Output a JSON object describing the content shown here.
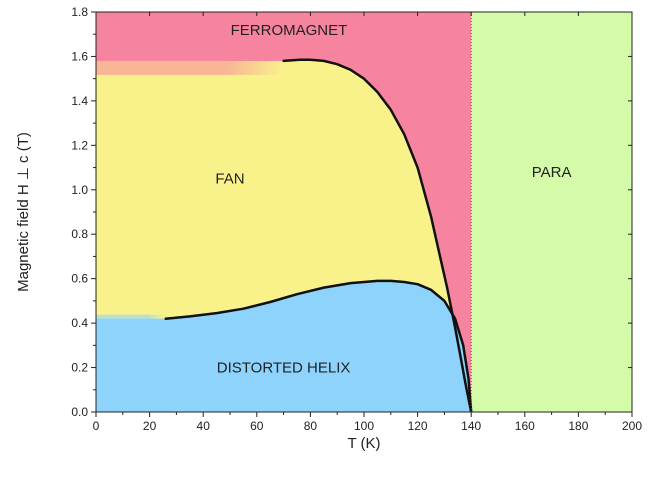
{
  "chart_data": {
    "type": "area",
    "title": "",
    "xlabel": "T (K)",
    "ylabel": "Magnetic field H ⊥ c (T)",
    "xlim": [
      0,
      200
    ],
    "ylim": [
      0,
      1.8
    ],
    "xticks": [
      "0",
      "20",
      "40",
      "60",
      "80",
      "100",
      "120",
      "140",
      "160",
      "180",
      "200"
    ],
    "yticks": [
      "0.0",
      "0.2",
      "0.4",
      "0.6",
      "0.8",
      "1.0",
      "1.2",
      "1.4",
      "1.6",
      "1.8"
    ],
    "grid": false,
    "phase_boundary_temperature": 140,
    "regions": [
      {
        "label": "FERROMAGNET",
        "color": "#f7849f",
        "label_x": 72,
        "label_y": 1.72
      },
      {
        "label": "FAN",
        "color": "#f9f28b",
        "label_x": 50,
        "label_y": 1.05
      },
      {
        "label": "DISTORTED HELIX",
        "color": "#8dd3fb",
        "label_x": 70,
        "label_y": 0.2
      },
      {
        "label": "PARA",
        "color": "#d4fba8",
        "label_x": 170,
        "label_y": 1.08
      }
    ],
    "series": [
      {
        "x": [
          70,
          76,
          80,
          85,
          90,
          95,
          100,
          105,
          110,
          115,
          120,
          125,
          128,
          131,
          134,
          136,
          138,
          139,
          140
        ],
        "y": [
          1.58,
          1.585,
          1.585,
          1.58,
          1.565,
          1.54,
          1.5,
          1.44,
          1.36,
          1.25,
          1.1,
          0.88,
          0.72,
          0.56,
          0.38,
          0.25,
          0.12,
          0.06,
          0.0
        ]
      },
      {
        "x": [
          26,
          35,
          45,
          55,
          65,
          75,
          85,
          95,
          100,
          105,
          110,
          115,
          120,
          125,
          130,
          134,
          137,
          139,
          140
        ],
        "y": [
          0.42,
          0.43,
          0.445,
          0.465,
          0.495,
          0.53,
          0.56,
          0.58,
          0.585,
          0.59,
          0.59,
          0.585,
          0.575,
          0.55,
          0.5,
          0.42,
          0.3,
          0.15,
          0.0
        ]
      }
    ]
  }
}
